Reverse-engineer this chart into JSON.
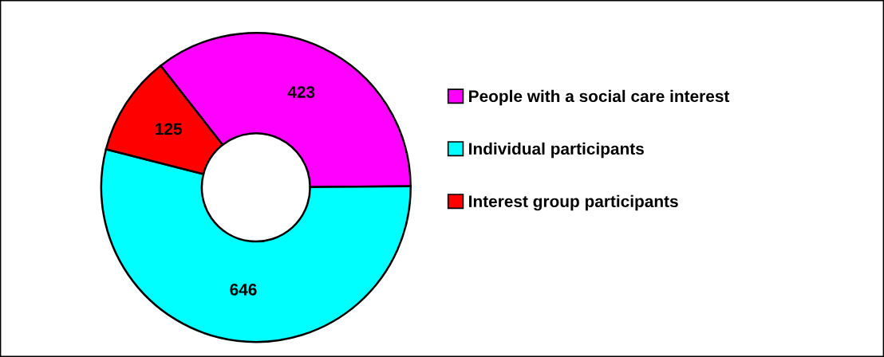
{
  "chart_data": {
    "type": "donut",
    "categories": [
      "People with a social care interest",
      "Individual participants",
      "Interest group participants"
    ],
    "values": [
      423,
      646,
      125
    ],
    "colors": [
      "#ff00ff",
      "#00ffff",
      "#ff0000"
    ],
    "data_labels": true,
    "legend": "right"
  }
}
